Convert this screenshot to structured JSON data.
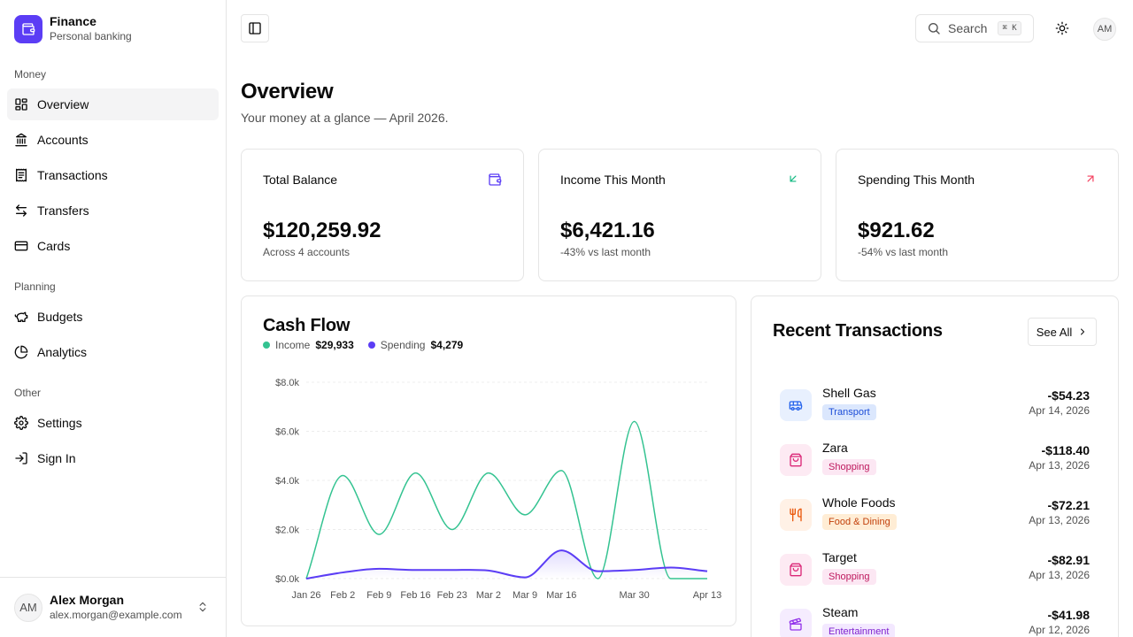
{
  "brand": {
    "name": "Finance",
    "subtitle": "Personal banking"
  },
  "sidebar": {
    "sections": [
      {
        "label": "Money"
      },
      {
        "label": "Planning"
      },
      {
        "label": "Other"
      }
    ],
    "items": [
      {
        "label": "Overview",
        "icon": "layout-dashboard-icon",
        "active": true
      },
      {
        "label": "Accounts",
        "icon": "landmark-icon"
      },
      {
        "label": "Transactions",
        "icon": "receipt-icon"
      },
      {
        "label": "Transfers",
        "icon": "arrow-left-right-icon"
      },
      {
        "label": "Cards",
        "icon": "credit-card-icon"
      },
      {
        "label": "Budgets",
        "icon": "piggy-bank-icon"
      },
      {
        "label": "Analytics",
        "icon": "pie-chart-icon"
      },
      {
        "label": "Settings",
        "icon": "gear-icon"
      },
      {
        "label": "Sign In",
        "icon": "log-in-icon"
      }
    ],
    "user": {
      "initials": "AM",
      "name": "Alex Morgan",
      "email": "alex.morgan@example.com"
    }
  },
  "topbar": {
    "search_label": "Search",
    "search_shortcut": "⌘ K",
    "avatar_initials": "AM"
  },
  "page": {
    "title": "Overview",
    "subtitle": "Your money at a glance — April 2026."
  },
  "stats": [
    {
      "title": "Total Balance",
      "value": "$120,259.92",
      "sub": "Across 4 accounts",
      "icon": "wallet-icon",
      "color": "#5b3df5"
    },
    {
      "title": "Income This Month",
      "value": "$6,421.16",
      "sub": "-43% vs last month",
      "icon": "arrow-down-left-icon",
      "color": "#10b981"
    },
    {
      "title": "Spending This Month",
      "value": "$921.62",
      "sub": "-54% vs last month",
      "icon": "arrow-up-right-icon",
      "color": "#f43f5e"
    }
  ],
  "cashflow": {
    "title": "Cash Flow",
    "income_label": "Income",
    "income_total": "$29,933",
    "spending_label": "Spending",
    "spending_total": "$4,279",
    "income_color": "#34c391",
    "spending_color": "#5b3df5"
  },
  "chart_data": {
    "type": "line",
    "x_labels": [
      "Jan 26",
      "Feb 2",
      "Feb 9",
      "Feb 16",
      "Feb 23",
      "Mar 2",
      "Mar 9",
      "Mar 16",
      "Mar 30",
      "Apr 13"
    ],
    "y_ticks": [
      "$0.0k",
      "$2.0k",
      "$4.0k",
      "$6.0k",
      "$8.0k"
    ],
    "ylim": [
      0,
      8000
    ],
    "grid": true,
    "series": [
      {
        "name": "Income",
        "points": [
          [
            0,
            0
          ],
          [
            1,
            4200
          ],
          [
            2,
            1800
          ],
          [
            3,
            4300
          ],
          [
            4,
            2000
          ],
          [
            5,
            4300
          ],
          [
            6,
            2600
          ],
          [
            7,
            4400
          ],
          [
            8,
            0
          ],
          [
            9,
            6400
          ],
          [
            10,
            0
          ],
          [
            11,
            0
          ]
        ]
      },
      {
        "name": "Spending",
        "points": [
          [
            0,
            0
          ],
          [
            1,
            250
          ],
          [
            2,
            400
          ],
          [
            3,
            350
          ],
          [
            4,
            350
          ],
          [
            5,
            330
          ],
          [
            6,
            50
          ],
          [
            7,
            1150
          ],
          [
            8,
            300
          ],
          [
            9,
            350
          ],
          [
            10,
            450
          ],
          [
            11,
            300
          ]
        ]
      }
    ]
  },
  "transactions": {
    "title": "Recent Transactions",
    "see_all": "See All",
    "items": [
      {
        "name": "Shell Gas",
        "category": "Transport",
        "amount": "-$54.23",
        "date": "Apr 14, 2026",
        "icon": "bus-icon",
        "bg": "#e8f0fe",
        "fg": "#2563eb",
        "badge_bg": "#dbe7fd",
        "badge_fg": "#1d4ed8"
      },
      {
        "name": "Zara",
        "category": "Shopping",
        "amount": "-$118.40",
        "date": "Apr 13, 2026",
        "icon": "shopping-bag-icon",
        "bg": "#fdeaf3",
        "fg": "#db2777",
        "badge_bg": "#fce7f3",
        "badge_fg": "#be185d"
      },
      {
        "name": "Whole Foods",
        "category": "Food & Dining",
        "amount": "-$72.21",
        "date": "Apr 13, 2026",
        "icon": "utensils-icon",
        "bg": "#fff1e6",
        "fg": "#ea580c",
        "badge_bg": "#ffedd5",
        "badge_fg": "#c2410c"
      },
      {
        "name": "Target",
        "category": "Shopping",
        "amount": "-$82.91",
        "date": "Apr 13, 2026",
        "icon": "shopping-bag-icon",
        "bg": "#fdeaf3",
        "fg": "#db2777",
        "badge_bg": "#fce7f3",
        "badge_fg": "#be185d"
      },
      {
        "name": "Steam",
        "category": "Entertainment",
        "amount": "-$41.98",
        "date": "Apr 12, 2026",
        "icon": "clapperboard-icon",
        "bg": "#f5ecfe",
        "fg": "#9333ea",
        "badge_bg": "#f3e8ff",
        "badge_fg": "#7e22ce"
      }
    ]
  }
}
